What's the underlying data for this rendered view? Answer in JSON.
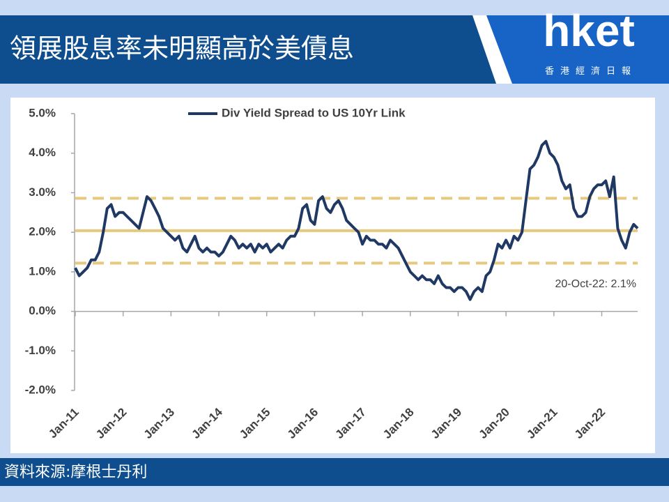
{
  "header": {
    "title": "領展股息率未明顯高於美債息",
    "logo": "hket",
    "logo_sub": "香港經濟日報"
  },
  "footer": {
    "source": "資料來源:摩根士丹利"
  },
  "chart_data": {
    "type": "line",
    "legend": "top",
    "x": [
      "2011-01",
      "2011-02",
      "2011-03",
      "2011-04",
      "2011-05",
      "2011-06",
      "2011-07",
      "2011-08",
      "2011-09",
      "2011-10",
      "2011-11",
      "2011-12",
      "2012-01",
      "2012-02",
      "2012-03",
      "2012-04",
      "2012-05",
      "2012-06",
      "2012-07",
      "2012-08",
      "2012-09",
      "2012-10",
      "2012-11",
      "2012-12",
      "2013-01",
      "2013-02",
      "2013-03",
      "2013-04",
      "2013-05",
      "2013-06",
      "2013-07",
      "2013-08",
      "2013-09",
      "2013-10",
      "2013-11",
      "2013-12",
      "2014-01",
      "2014-02",
      "2014-03",
      "2014-04",
      "2014-05",
      "2014-06",
      "2014-07",
      "2014-08",
      "2014-09",
      "2014-10",
      "2014-11",
      "2014-12",
      "2015-01",
      "2015-02",
      "2015-03",
      "2015-04",
      "2015-05",
      "2015-06",
      "2015-07",
      "2015-08",
      "2015-09",
      "2015-10",
      "2015-11",
      "2015-12",
      "2016-01",
      "2016-02",
      "2016-03",
      "2016-04",
      "2016-05",
      "2016-06",
      "2016-07",
      "2016-08",
      "2016-09",
      "2016-10",
      "2016-11",
      "2016-12",
      "2017-01",
      "2017-02",
      "2017-03",
      "2017-04",
      "2017-05",
      "2017-06",
      "2017-07",
      "2017-08",
      "2017-09",
      "2017-10",
      "2017-11",
      "2017-12",
      "2018-01",
      "2018-02",
      "2018-03",
      "2018-04",
      "2018-05",
      "2018-06",
      "2018-07",
      "2018-08",
      "2018-09",
      "2018-10",
      "2018-11",
      "2018-12",
      "2019-01",
      "2019-02",
      "2019-03",
      "2019-04",
      "2019-05",
      "2019-06",
      "2019-07",
      "2019-08",
      "2019-09",
      "2019-10",
      "2019-11",
      "2019-12",
      "2020-01",
      "2020-02",
      "2020-03",
      "2020-04",
      "2020-05",
      "2020-06",
      "2020-07",
      "2020-08",
      "2020-09",
      "2020-10",
      "2020-11",
      "2020-12",
      "2021-01",
      "2021-02",
      "2021-03",
      "2021-04",
      "2021-05",
      "2021-06",
      "2021-07",
      "2021-08",
      "2021-09",
      "2021-10",
      "2021-11",
      "2021-12",
      "2022-01",
      "2022-02",
      "2022-03",
      "2022-04",
      "2022-05",
      "2022-06",
      "2022-07",
      "2022-08",
      "2022-09",
      "2022-10"
    ],
    "series": [
      {
        "name": "Div Yield Spread to US 10Yr Link",
        "color": "#1f3864",
        "values": [
          1.1,
          0.9,
          1.0,
          1.1,
          1.3,
          1.3,
          1.5,
          2.0,
          2.6,
          2.7,
          2.4,
          2.5,
          2.5,
          2.4,
          2.3,
          2.2,
          2.1,
          2.5,
          2.9,
          2.8,
          2.6,
          2.4,
          2.1,
          2.0,
          1.9,
          1.8,
          1.9,
          1.6,
          1.5,
          1.7,
          1.9,
          1.6,
          1.5,
          1.6,
          1.5,
          1.5,
          1.4,
          1.5,
          1.7,
          1.9,
          1.8,
          1.6,
          1.7,
          1.6,
          1.7,
          1.5,
          1.7,
          1.6,
          1.7,
          1.5,
          1.6,
          1.7,
          1.6,
          1.8,
          1.9,
          1.9,
          2.1,
          2.6,
          2.7,
          2.3,
          2.2,
          2.8,
          2.9,
          2.6,
          2.5,
          2.7,
          2.8,
          2.6,
          2.3,
          2.2,
          2.1,
          2.0,
          1.7,
          1.9,
          1.8,
          1.8,
          1.7,
          1.7,
          1.6,
          1.8,
          1.7,
          1.6,
          1.4,
          1.2,
          1.0,
          0.9,
          0.8,
          0.9,
          0.8,
          0.8,
          0.7,
          0.9,
          0.7,
          0.6,
          0.6,
          0.5,
          0.6,
          0.6,
          0.5,
          0.3,
          0.5,
          0.6,
          0.5,
          0.9,
          1.0,
          1.3,
          1.7,
          1.6,
          1.8,
          1.6,
          1.9,
          1.8,
          2.0,
          2.8,
          3.6,
          3.7,
          3.9,
          4.2,
          4.3,
          4.0,
          3.9,
          3.7,
          3.3,
          3.1,
          3.2,
          2.6,
          2.4,
          2.4,
          2.5,
          2.9,
          3.1,
          3.2,
          3.2,
          3.3,
          2.9,
          3.4,
          2.1,
          1.8,
          1.6,
          2.0,
          2.2,
          2.1
        ]
      }
    ],
    "reference_lines": [
      {
        "value": 2.04,
        "style": "solid",
        "color": "#e6c97f"
      },
      {
        "value": 2.86,
        "style": "dashed",
        "color": "#e6c97f"
      },
      {
        "value": 1.22,
        "style": "dashed",
        "color": "#e6c97f"
      }
    ],
    "annotation": "20-Oct-22: 2.1%",
    "xlim": [
      "2011-01",
      "2022-10"
    ],
    "xticks": [
      {
        "value": "2011-01",
        "label": "Jan-11"
      },
      {
        "value": "2012-01",
        "label": "Jan-12"
      },
      {
        "value": "2013-01",
        "label": "Jan-13"
      },
      {
        "value": "2014-01",
        "label": "Jan-14"
      },
      {
        "value": "2015-01",
        "label": "Jan-15"
      },
      {
        "value": "2016-01",
        "label": "Jan-16"
      },
      {
        "value": "2017-01",
        "label": "Jan-17"
      },
      {
        "value": "2018-01",
        "label": "Jan-18"
      },
      {
        "value": "2019-01",
        "label": "Jan-19"
      },
      {
        "value": "2020-01",
        "label": "Jan-20"
      },
      {
        "value": "2021-01",
        "label": "Jan-21"
      },
      {
        "value": "2022-01",
        "label": "Jan-22"
      }
    ],
    "ylim": [
      -2,
      5
    ],
    "yticks": [
      {
        "value": -2,
        "label": "-2.0%"
      },
      {
        "value": -1,
        "label": "-1.0%"
      },
      {
        "value": 0,
        "label": "0.0%"
      },
      {
        "value": 1,
        "label": "1.0%"
      },
      {
        "value": 2,
        "label": "2.0%"
      },
      {
        "value": 3,
        "label": "3.0%"
      },
      {
        "value": 4,
        "label": "4.0%"
      },
      {
        "value": 5,
        "label": "5.0%"
      }
    ]
  }
}
